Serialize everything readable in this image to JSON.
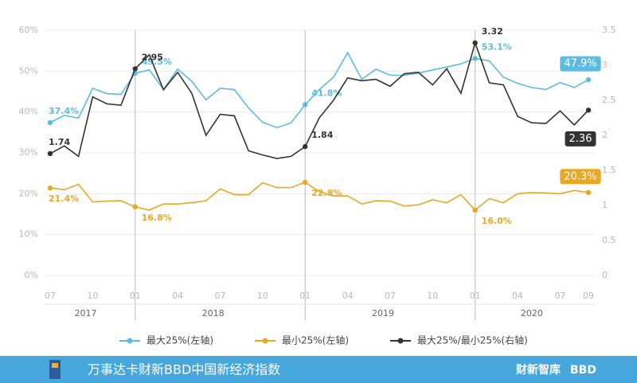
{
  "chart_data": {
    "type": "line",
    "categories": [
      "07",
      null,
      null,
      "10",
      null,
      null,
      "01",
      null,
      null,
      "04",
      null,
      null,
      "07",
      null,
      null,
      "10",
      null,
      null,
      "01",
      null,
      null,
      "04",
      null,
      null,
      "07",
      null,
      null,
      "10",
      null,
      null,
      "01",
      null,
      null,
      "04",
      null,
      null,
      "07",
      null,
      "09"
    ],
    "x_groups": [
      "2017",
      "2018",
      "2019",
      "2020"
    ],
    "series": [
      {
        "name": "最大25%(左轴)",
        "color": "#5bbbe0",
        "values": [
          37.4,
          39.2,
          38.5,
          45.8,
          44.5,
          44.3,
          49.5,
          50.3,
          45.5,
          50.5,
          47.5,
          43,
          45.8,
          45.5,
          41,
          37.5,
          36.2,
          37.3,
          41.8,
          45.5,
          48.5,
          54.5,
          48,
          50.5,
          49,
          49,
          49.5,
          50.3,
          51,
          51.8,
          53.1,
          52.5,
          48.5,
          47,
          46,
          45.5,
          47.2,
          46,
          47.9
        ],
        "value_labels": [
          "37.4%",
          null,
          null,
          null,
          null,
          null,
          "49.5%",
          null,
          null,
          null,
          null,
          null,
          null,
          null,
          null,
          null,
          null,
          null,
          "41.8%",
          null,
          null,
          null,
          null,
          null,
          null,
          null,
          null,
          null,
          null,
          null,
          "53.1%",
          null,
          null,
          null,
          null,
          null,
          null,
          null,
          "47.9%"
        ]
      },
      {
        "name": "最小25%(左轴)",
        "color": "#e9a824",
        "values": [
          21.4,
          21.0,
          22.3,
          18.0,
          18.2,
          18.3,
          16.8,
          16.0,
          17.5,
          17.5,
          17.8,
          18.3,
          21.2,
          19.8,
          19.8,
          22.7,
          21.5,
          21.5,
          22.8,
          20.5,
          19.5,
          19.5,
          17.5,
          18.3,
          18.2,
          17.0,
          17.3,
          18.5,
          17.8,
          19.8,
          16.0,
          18.8,
          17.8,
          20.0,
          20.3,
          20.2,
          20.0,
          20.8,
          20.3
        ],
        "value_labels": [
          "21.4%",
          null,
          null,
          null,
          null,
          null,
          "16.8%",
          null,
          null,
          null,
          null,
          null,
          null,
          null,
          null,
          null,
          null,
          null,
          "22.8%",
          null,
          null,
          null,
          null,
          null,
          null,
          null,
          null,
          null,
          null,
          null,
          "16.0%",
          null,
          null,
          null,
          null,
          null,
          null,
          null,
          "20.3%"
        ]
      },
      {
        "name": "最大25%/最小25%(右轴)",
        "color": "#333333",
        "axis": "y2",
        "values": [
          1.74,
          1.85,
          1.7,
          2.55,
          2.45,
          2.43,
          2.95,
          3.15,
          2.65,
          2.9,
          2.6,
          2.0,
          2.3,
          2.28,
          1.78,
          1.72,
          1.67,
          1.7,
          1.84,
          2.25,
          2.5,
          2.82,
          2.78,
          2.8,
          2.7,
          2.88,
          2.9,
          2.72,
          2.95,
          2.6,
          3.32,
          2.75,
          2.72,
          2.27,
          2.18,
          2.17,
          2.35,
          2.15,
          2.36
        ],
        "value_labels": [
          "1.74",
          null,
          null,
          null,
          null,
          null,
          "2.95",
          null,
          null,
          null,
          null,
          null,
          null,
          null,
          null,
          null,
          null,
          null,
          "1.84",
          null,
          null,
          null,
          null,
          null,
          null,
          null,
          null,
          null,
          null,
          null,
          "3.32",
          null,
          null,
          null,
          null,
          null,
          null,
          null,
          "2.36"
        ]
      }
    ],
    "ylim": [
      0,
      60
    ],
    "yticks": [
      {
        "value": 0,
        "label": "0%"
      },
      {
        "value": 10,
        "label": "10%"
      },
      {
        "value": 20,
        "label": "20%"
      },
      {
        "value": 30,
        "label": "30%"
      },
      {
        "value": 40,
        "label": "40%"
      },
      {
        "value": 50,
        "label": "50%"
      },
      {
        "value": 60,
        "label": "60%"
      }
    ],
    "y2lim": [
      0,
      3.5
    ],
    "y2ticks": [
      0,
      0.5,
      1,
      1.5,
      2,
      2.5,
      3,
      3.5
    ],
    "grid": true,
    "legend": "bottom"
  },
  "footer": {
    "title": "万事达卡财新BBD中国新经济指数",
    "logos": [
      "财新智库",
      "BBD"
    ]
  }
}
